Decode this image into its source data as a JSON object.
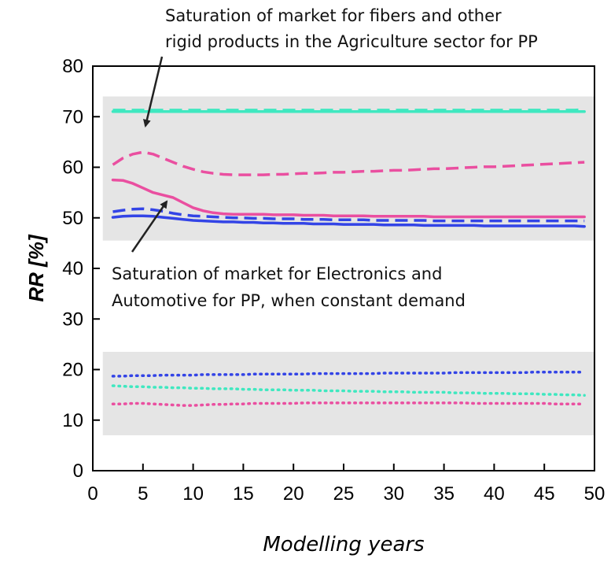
{
  "chart_data": {
    "type": "line",
    "title": "",
    "xlabel": "Modelling years",
    "ylabel_bold_part": "RR",
    "ylabel_rest": " [%]",
    "xlim": [
      0,
      50
    ],
    "ylim": [
      0,
      80
    ],
    "xticks": [
      0,
      5,
      10,
      15,
      20,
      25,
      30,
      35,
      40,
      45,
      50
    ],
    "yticks": [
      0,
      10,
      20,
      30,
      40,
      50,
      60,
      70,
      80
    ],
    "grid": false,
    "legend": "none",
    "shaded_bands": [
      {
        "x_range": [
          1,
          50
        ],
        "y_range": [
          45.5,
          74
        ]
      },
      {
        "x_range": [
          1,
          50
        ],
        "y_range": [
          7,
          23.5
        ]
      }
    ],
    "x": [
      2,
      3,
      4,
      5,
      6,
      7,
      8,
      9,
      10,
      11,
      12,
      13,
      14,
      15,
      16,
      17,
      18,
      19,
      20,
      21,
      22,
      23,
      24,
      25,
      26,
      27,
      28,
      29,
      30,
      31,
      32,
      33,
      34,
      35,
      36,
      37,
      38,
      39,
      40,
      41,
      42,
      43,
      44,
      45,
      46,
      47,
      48,
      49
    ],
    "series": [
      {
        "color": "#3fe8c0",
        "style": "dashed",
        "values": [
          71.3,
          71.3,
          71.3,
          71.3,
          71.3,
          71.3,
          71.3,
          71.3,
          71.3,
          71.3,
          71.3,
          71.3,
          71.3,
          71.3,
          71.3,
          71.3,
          71.3,
          71.3,
          71.3,
          71.3,
          71.3,
          71.3,
          71.3,
          71.3,
          71.3,
          71.3,
          71.3,
          71.3,
          71.3,
          71.3,
          71.3,
          71.3,
          71.3,
          71.3,
          71.3,
          71.3,
          71.3,
          71.3,
          71.3,
          71.3,
          71.3,
          71.3,
          71.3,
          71.3,
          71.3,
          71.3,
          71.3,
          71.4
        ]
      },
      {
        "color": "#3fe8c0",
        "style": "solid",
        "values": [
          71.0,
          71.0,
          71.0,
          71.0,
          71.0,
          71.0,
          71.0,
          71.0,
          71.0,
          71.0,
          71.0,
          71.0,
          71.0,
          71.0,
          71.0,
          71.0,
          71.0,
          71.0,
          71.0,
          71.0,
          71.0,
          71.0,
          71.0,
          71.0,
          71.0,
          71.0,
          71.0,
          71.0,
          71.0,
          71.0,
          71.0,
          71.0,
          71.0,
          71.0,
          71.0,
          71.0,
          71.0,
          71.0,
          71.0,
          71.0,
          71.0,
          71.0,
          71.0,
          71.0,
          71.0,
          71.0,
          71.0,
          71.0
        ]
      },
      {
        "color": "#ea4fa0",
        "style": "dashed",
        "values": [
          60.5,
          61.8,
          62.6,
          63.0,
          62.6,
          61.8,
          61.0,
          60.2,
          59.6,
          59.1,
          58.8,
          58.6,
          58.5,
          58.5,
          58.5,
          58.5,
          58.6,
          58.6,
          58.7,
          58.8,
          58.8,
          58.9,
          59.0,
          59.0,
          59.1,
          59.2,
          59.2,
          59.3,
          59.4,
          59.4,
          59.5,
          59.6,
          59.7,
          59.7,
          59.8,
          59.9,
          60.0,
          60.1,
          60.1,
          60.2,
          60.3,
          60.4,
          60.5,
          60.6,
          60.7,
          60.8,
          60.9,
          61.0
        ]
      },
      {
        "color": "#ea4fa0",
        "style": "solid",
        "values": [
          57.5,
          57.4,
          56.8,
          55.9,
          55.0,
          54.5,
          54.0,
          53.0,
          52.0,
          51.4,
          51.0,
          50.8,
          50.7,
          50.7,
          50.7,
          50.7,
          50.6,
          50.6,
          50.6,
          50.5,
          50.5,
          50.5,
          50.4,
          50.4,
          50.4,
          50.4,
          50.3,
          50.3,
          50.3,
          50.3,
          50.3,
          50.3,
          50.2,
          50.2,
          50.2,
          50.2,
          50.2,
          50.2,
          50.2,
          50.2,
          50.2,
          50.2,
          50.2,
          50.2,
          50.2,
          50.2,
          50.2,
          50.2
        ]
      },
      {
        "color": "#3344e6",
        "style": "dashed",
        "values": [
          51.2,
          51.5,
          51.7,
          51.8,
          51.6,
          51.3,
          50.9,
          50.6,
          50.4,
          50.3,
          50.2,
          50.1,
          50.0,
          50.0,
          49.9,
          49.9,
          49.8,
          49.8,
          49.8,
          49.7,
          49.7,
          49.7,
          49.6,
          49.6,
          49.6,
          49.6,
          49.5,
          49.5,
          49.5,
          49.5,
          49.5,
          49.5,
          49.4,
          49.4,
          49.4,
          49.4,
          49.4,
          49.4,
          49.4,
          49.4,
          49.4,
          49.4,
          49.4,
          49.4,
          49.4,
          49.4,
          49.4,
          49.4
        ]
      },
      {
        "color": "#3344e6",
        "style": "solid",
        "values": [
          50.1,
          50.3,
          50.4,
          50.4,
          50.3,
          50.1,
          49.9,
          49.7,
          49.5,
          49.4,
          49.3,
          49.2,
          49.2,
          49.1,
          49.1,
          49.0,
          49.0,
          48.9,
          48.9,
          48.9,
          48.8,
          48.8,
          48.8,
          48.7,
          48.7,
          48.7,
          48.7,
          48.6,
          48.6,
          48.6,
          48.6,
          48.5,
          48.5,
          48.5,
          48.5,
          48.5,
          48.5,
          48.4,
          48.4,
          48.4,
          48.4,
          48.4,
          48.4,
          48.4,
          48.4,
          48.4,
          48.4,
          48.3
        ]
      },
      {
        "color": "#3344e6",
        "style": "dotted",
        "values": [
          18.7,
          18.7,
          18.8,
          18.8,
          18.8,
          18.9,
          18.9,
          18.9,
          18.9,
          19.0,
          19.0,
          19.0,
          19.0,
          19.0,
          19.1,
          19.1,
          19.1,
          19.1,
          19.1,
          19.1,
          19.2,
          19.2,
          19.2,
          19.2,
          19.2,
          19.2,
          19.2,
          19.3,
          19.3,
          19.3,
          19.3,
          19.3,
          19.3,
          19.3,
          19.4,
          19.4,
          19.4,
          19.4,
          19.4,
          19.4,
          19.4,
          19.4,
          19.5,
          19.5,
          19.5,
          19.5,
          19.5,
          19.5
        ]
      },
      {
        "color": "#3fe8c0",
        "style": "dotted",
        "values": [
          16.8,
          16.7,
          16.6,
          16.6,
          16.5,
          16.5,
          16.4,
          16.4,
          16.3,
          16.3,
          16.2,
          16.2,
          16.2,
          16.1,
          16.1,
          16.0,
          16.0,
          16.0,
          15.9,
          15.9,
          15.9,
          15.8,
          15.8,
          15.8,
          15.7,
          15.7,
          15.7,
          15.6,
          15.6,
          15.6,
          15.5,
          15.5,
          15.5,
          15.5,
          15.4,
          15.4,
          15.4,
          15.3,
          15.3,
          15.3,
          15.2,
          15.2,
          15.2,
          15.1,
          15.1,
          15.0,
          15.0,
          14.9
        ]
      },
      {
        "color": "#ea4fa0",
        "style": "dotted",
        "values": [
          13.2,
          13.2,
          13.3,
          13.3,
          13.2,
          13.1,
          13.0,
          12.9,
          12.9,
          13.0,
          13.1,
          13.1,
          13.2,
          13.2,
          13.3,
          13.3,
          13.3,
          13.3,
          13.3,
          13.4,
          13.4,
          13.4,
          13.4,
          13.4,
          13.4,
          13.4,
          13.4,
          13.4,
          13.4,
          13.4,
          13.4,
          13.4,
          13.4,
          13.4,
          13.4,
          13.4,
          13.3,
          13.3,
          13.3,
          13.3,
          13.3,
          13.3,
          13.3,
          13.3,
          13.2,
          13.2,
          13.2,
          13.2
        ]
      }
    ],
    "annotations": [
      {
        "lines": [
          "Saturation of market for fibers and other",
          "rigid products in the Agriculture sector for PP"
        ],
        "points_to": [
          5,
          64
        ]
      },
      {
        "lines": [
          "Saturation of market for Electronics and",
          "Automotive for PP, when constant demand"
        ],
        "points_to": [
          7.5,
          55
        ]
      }
    ]
  }
}
